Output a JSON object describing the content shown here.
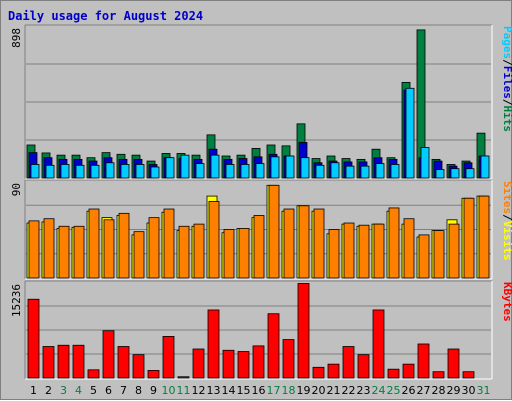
{
  "chart_data": {
    "type": "bar",
    "title": "Daily usage for August 2024",
    "x_labels": [
      "1",
      "2",
      "3",
      "4",
      "5",
      "6",
      "7",
      "8",
      "9",
      "10",
      "11",
      "12",
      "13",
      "14",
      "15",
      "16",
      "17",
      "18",
      "19",
      "20",
      "21",
      "22",
      "23",
      "24",
      "25",
      "26",
      "27",
      "28",
      "29",
      "30",
      "31"
    ],
    "weekend_days": [
      "3",
      "4",
      "10",
      "11",
      "17",
      "18",
      "24",
      "25",
      "31"
    ],
    "colors": {
      "pages": "#00ccff",
      "files": "#0000cc",
      "hits": "#008040",
      "sites": "#ff8000",
      "visits": "#ffff00",
      "kbytes": "#ff0000",
      "weekday_label": "#000000",
      "weekend_label": "#008040"
    },
    "panels": [
      {
        "name": "hits-files-pages",
        "ymax_label": "898",
        "ymax": 898,
        "right_label": [
          "Pages",
          "Files",
          "Hits"
        ],
        "series": [
          {
            "name": "Hits",
            "values": [
              195,
              148,
              135,
              135,
              120,
              150,
              140,
              135,
              100,
              145,
              145,
              135,
              255,
              130,
              135,
              175,
              195,
              190,
              320,
              115,
              130,
              115,
              110,
              170,
              120,
              565,
              875,
              110,
              80,
              100,
              265
            ]
          },
          {
            "name": "Files",
            "values": [
              150,
              120,
              110,
              110,
              100,
              120,
              110,
              110,
              80,
              120,
              115,
              110,
              170,
              110,
              115,
              125,
              140,
              130,
              210,
              90,
              100,
              95,
              95,
              120,
              110,
              520,
              120,
              100,
              70,
              90,
              130
            ]
          },
          {
            "name": "Pages",
            "values": [
              80,
              75,
              80,
              75,
              75,
              90,
              80,
              80,
              65,
              120,
              135,
              85,
              135,
              80,
              80,
              85,
              125,
              130,
              120,
              75,
              90,
              70,
              70,
              85,
              80,
              530,
              180,
              50,
              55,
              55,
              130
            ]
          }
        ]
      },
      {
        "name": "visits-sites",
        "ymax_label": "90",
        "ymax": 90,
        "right_label": [
          "Sites",
          "Visits"
        ],
        "series": [
          {
            "name": "Visits",
            "values": [
              51,
              52,
              46,
              47,
              62,
              56,
              58,
              40,
              51,
              61,
              44,
              48,
              76,
              42,
              46,
              56,
              86,
              62,
              67,
              62,
              41,
              50,
              48,
              50,
              62,
              50,
              38,
              44,
              54,
              74,
              76
            ]
          },
          {
            "name": "Sites",
            "values": [
              53,
              55,
              48,
              48,
              64,
              54,
              60,
              43,
              56,
              64,
              48,
              50,
              71,
              45,
              46,
              58,
              86,
              64,
              67,
              64,
              45,
              51,
              49,
              50,
              65,
              55,
              40,
              44,
              50,
              74,
              76
            ]
          }
        ]
      },
      {
        "name": "kbytes",
        "ymax_label": "15236",
        "ymax": 15236,
        "right_label": [
          "KBytes"
        ],
        "series": [
          {
            "name": "KBytes",
            "values": [
              12500,
              5000,
              5200,
              5200,
              1300,
              7500,
              5000,
              3700,
              1200,
              6600,
              200,
              4600,
              10800,
              4400,
              4200,
              5100,
              10200,
              6100,
              15000,
              1700,
              2200,
              5000,
              3700,
              10800,
              1400,
              2200,
              5400,
              1000,
              4600,
              1000,
              0
            ]
          }
        ]
      }
    ]
  }
}
